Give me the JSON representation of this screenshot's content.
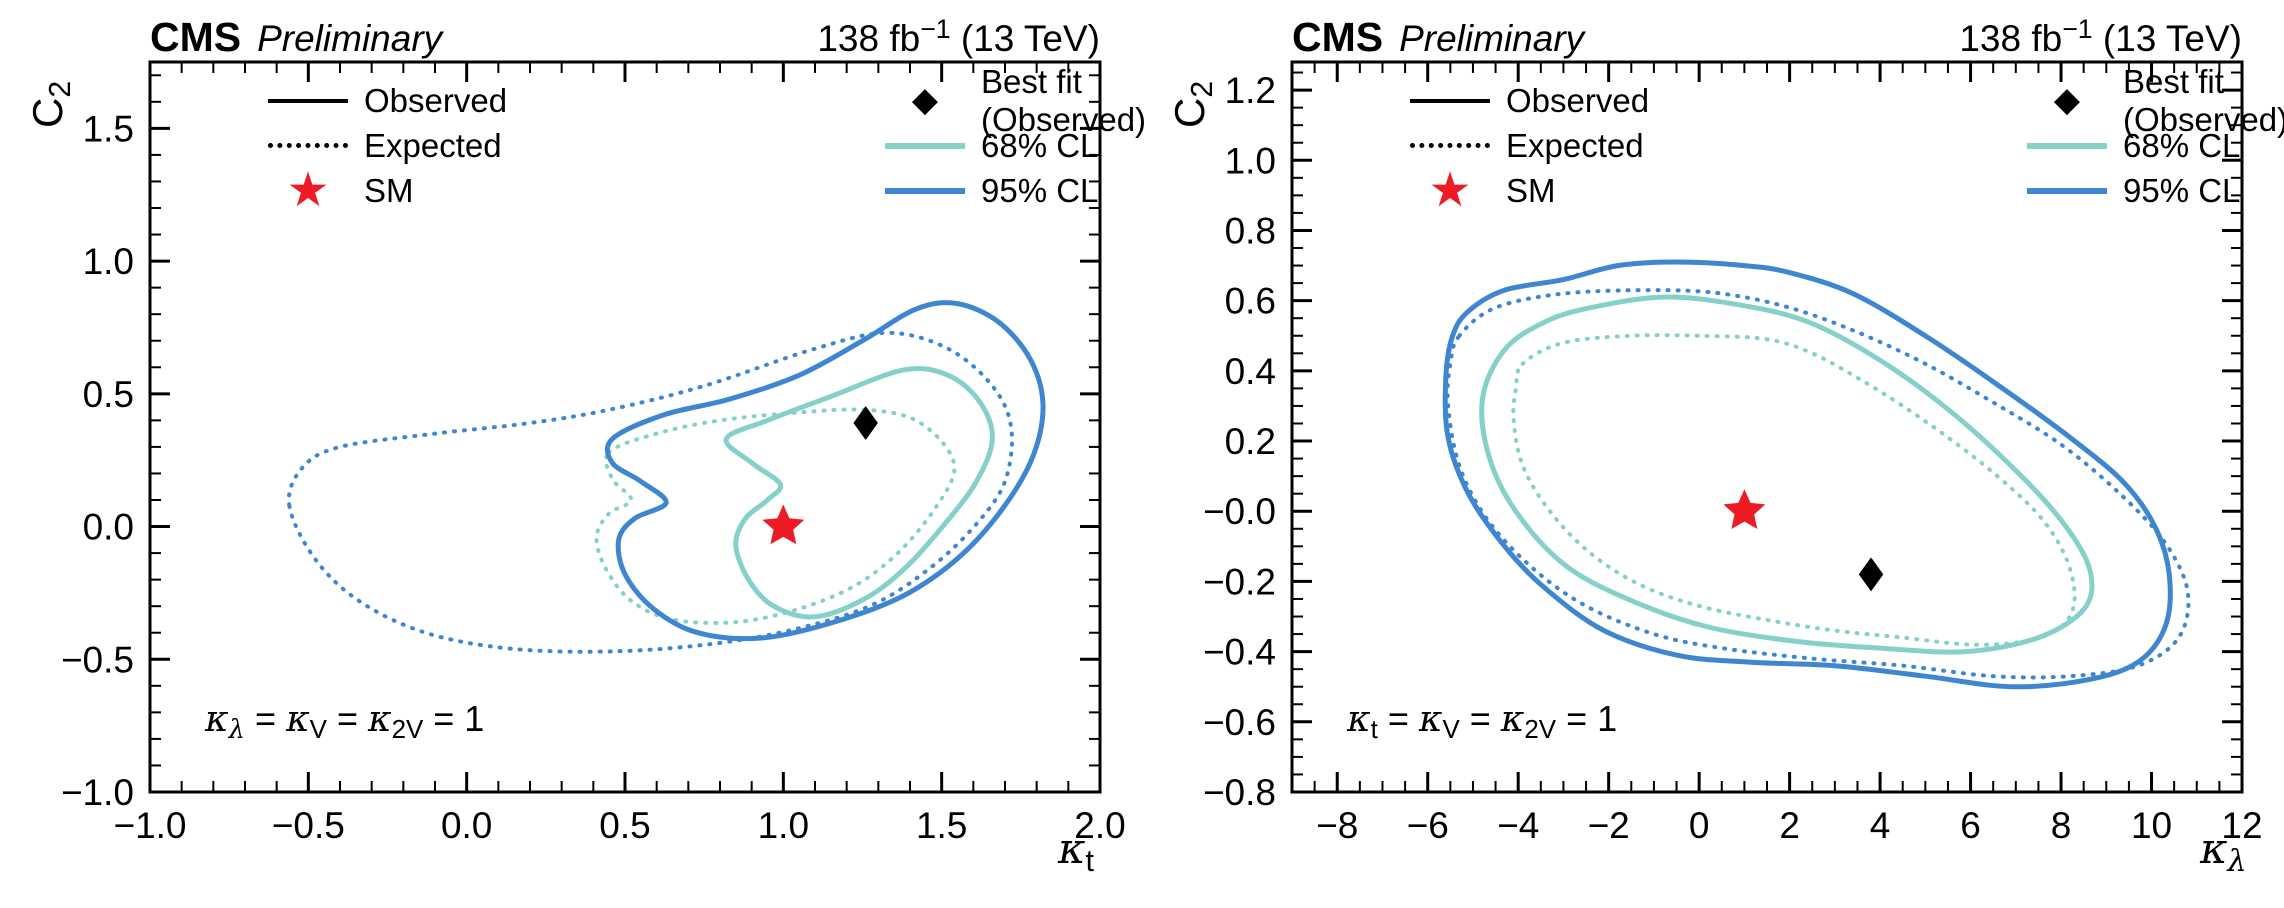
{
  "colors": {
    "blue_95": "#3e86cf",
    "teal_68": "#85d1ca",
    "red_sm": "#ed1c24",
    "black": "#000000"
  },
  "header": {
    "cms": "CMS",
    "preliminary": "Preliminary",
    "lumi": [
      {
        "t": "138 fb"
      },
      {
        "t": "−1",
        "sup": true
      },
      {
        "t": " (13 TeV)"
      }
    ]
  },
  "legend": {
    "items": [
      {
        "label": "Observed",
        "swatch": "solid-black-line"
      },
      {
        "label": "Expected",
        "swatch": "dotted-black-line"
      },
      {
        "label": "SM",
        "swatch": "red-star"
      },
      {
        "label": "Best fit (Observed)",
        "swatch": "black-diamond"
      },
      {
        "label": "68% CL",
        "swatch": "teal-line"
      },
      {
        "label": "95% CL",
        "swatch": "blue-line"
      }
    ]
  },
  "chart_data": [
    {
      "type": "contour",
      "panel": "left",
      "xlabel": "κ_t",
      "ylabel": "C_2",
      "xlabel_rich": [
        {
          "t": "κ",
          "f": "math"
        },
        {
          "t": "t",
          "sub": true
        }
      ],
      "ylabel_rich": [
        {
          "t": "C"
        },
        {
          "t": "2",
          "sub": true
        }
      ],
      "annotation_rich": [
        {
          "t": "κ",
          "f": "math"
        },
        {
          "t": "λ",
          "sub": true,
          "f": "math"
        },
        {
          "t": " = "
        },
        {
          "t": "κ",
          "f": "math"
        },
        {
          "t": "V",
          "sub": true
        },
        {
          "t": " = "
        },
        {
          "t": "κ",
          "f": "math"
        },
        {
          "t": "2V",
          "sub": true
        },
        {
          "t": " = 1"
        }
      ],
      "xlim": [
        -1.0,
        2.0
      ],
      "ylim": [
        -1.0,
        1.75
      ],
      "xticks": [
        -1.0,
        -0.5,
        0.0,
        0.5,
        1.0,
        1.5,
        2.0
      ],
      "xtick_labels": [
        "−1.0",
        "−0.5",
        "0.0",
        "0.5",
        "1.0",
        "1.5",
        "2.0"
      ],
      "yticks": [
        -1.0,
        -0.5,
        0.0,
        0.5,
        1.0,
        1.5
      ],
      "ytick_labels": [
        "−1.0",
        "−0.5",
        "0.0",
        "0.5",
        "1.0",
        "1.5"
      ],
      "xminor": 0.1,
      "yminor": 0.1,
      "series": [
        {
          "id": "95-expected",
          "name": "95% CL Expected",
          "style": "dotted",
          "color": "#3e86cf",
          "width": 4,
          "points": [
            [
              -0.56,
              0.08
            ],
            [
              -0.52,
              0.22
            ],
            [
              -0.4,
              0.3
            ],
            [
              -0.1,
              0.35
            ],
            [
              0.2,
              0.39
            ],
            [
              0.45,
              0.44
            ],
            [
              0.75,
              0.53
            ],
            [
              1.1,
              0.67
            ],
            [
              1.33,
              0.73
            ],
            [
              1.52,
              0.67
            ],
            [
              1.66,
              0.53
            ],
            [
              1.72,
              0.37
            ],
            [
              1.7,
              0.17
            ],
            [
              1.61,
              0.01
            ],
            [
              1.47,
              -0.15
            ],
            [
              1.29,
              -0.29
            ],
            [
              1.06,
              -0.38
            ],
            [
              0.79,
              -0.44
            ],
            [
              0.47,
              -0.47
            ],
            [
              0.14,
              -0.46
            ],
            [
              -0.13,
              -0.4
            ],
            [
              -0.34,
              -0.28
            ],
            [
              -0.48,
              -0.12
            ]
          ]
        },
        {
          "id": "68-expected",
          "name": "68% CL Expected",
          "style": "dotted",
          "color": "#85d1ca",
          "width": 4,
          "points": [
            [
              0.45,
              0.28
            ],
            [
              0.6,
              0.35
            ],
            [
              0.8,
              0.4
            ],
            [
              1.05,
              0.43
            ],
            [
              1.25,
              0.44
            ],
            [
              1.4,
              0.41
            ],
            [
              1.5,
              0.32
            ],
            [
              1.54,
              0.21
            ],
            [
              1.48,
              0.07
            ],
            [
              1.37,
              -0.09
            ],
            [
              1.23,
              -0.22
            ],
            [
              1.05,
              -0.31
            ],
            [
              0.85,
              -0.36
            ],
            [
              0.65,
              -0.35
            ],
            [
              0.52,
              -0.28
            ],
            [
              0.44,
              -0.16
            ],
            [
              0.41,
              -0.04
            ],
            [
              0.45,
              0.05
            ],
            [
              0.52,
              0.1
            ],
            [
              0.46,
              0.18
            ]
          ]
        },
        {
          "id": "95-observed",
          "name": "95% CL Observed",
          "style": "solid",
          "color": "#3e86cf",
          "width": 5,
          "points": [
            [
              0.46,
              0.33
            ],
            [
              0.62,
              0.42
            ],
            [
              0.83,
              0.48
            ],
            [
              1.05,
              0.57
            ],
            [
              1.25,
              0.7
            ],
            [
              1.42,
              0.82
            ],
            [
              1.55,
              0.84
            ],
            [
              1.68,
              0.77
            ],
            [
              1.78,
              0.63
            ],
            [
              1.82,
              0.46
            ],
            [
              1.79,
              0.27
            ],
            [
              1.7,
              0.08
            ],
            [
              1.56,
              -0.11
            ],
            [
              1.38,
              -0.26
            ],
            [
              1.16,
              -0.36
            ],
            [
              0.93,
              -0.42
            ],
            [
              0.73,
              -0.4
            ],
            [
              0.59,
              -0.31
            ],
            [
              0.5,
              -0.18
            ],
            [
              0.48,
              -0.05
            ],
            [
              0.53,
              0.03
            ],
            [
              0.63,
              0.09
            ],
            [
              0.55,
              0.17
            ],
            [
              0.46,
              0.24
            ]
          ]
        },
        {
          "id": "68-observed",
          "name": "68% CL Observed",
          "style": "solid",
          "color": "#85d1ca",
          "width": 5,
          "points": [
            [
              0.82,
              0.33
            ],
            [
              0.95,
              0.4
            ],
            [
              1.15,
              0.49
            ],
            [
              1.38,
              0.59
            ],
            [
              1.52,
              0.57
            ],
            [
              1.62,
              0.47
            ],
            [
              1.66,
              0.33
            ],
            [
              1.61,
              0.17
            ],
            [
              1.51,
              0.01
            ],
            [
              1.39,
              -0.15
            ],
            [
              1.26,
              -0.27
            ],
            [
              1.1,
              -0.34
            ],
            [
              0.97,
              -0.3
            ],
            [
              0.89,
              -0.2
            ],
            [
              0.85,
              -0.07
            ],
            [
              0.88,
              0.03
            ],
            [
              0.95,
              0.1
            ],
            [
              0.99,
              0.16
            ],
            [
              0.9,
              0.24
            ]
          ]
        }
      ],
      "markers": [
        {
          "id": "sm",
          "name": "SM",
          "shape": "star",
          "color": "#ed1c24",
          "x": 1.0,
          "y": 0.0,
          "size": 22
        },
        {
          "id": "best-fit",
          "name": "Best fit (Observed)",
          "shape": "diamond",
          "color": "#000000",
          "x": 1.26,
          "y": 0.39,
          "size": 17
        }
      ]
    },
    {
      "type": "contour",
      "panel": "right",
      "xlabel": "κ_λ",
      "ylabel": "C_2",
      "xlabel_rich": [
        {
          "t": "κ",
          "f": "math"
        },
        {
          "t": "λ",
          "sub": true,
          "f": "math"
        }
      ],
      "ylabel_rich": [
        {
          "t": "C"
        },
        {
          "t": "2",
          "sub": true
        }
      ],
      "annotation_rich": [
        {
          "t": "κ",
          "f": "math"
        },
        {
          "t": "t",
          "sub": true
        },
        {
          "t": " = "
        },
        {
          "t": "κ",
          "f": "math"
        },
        {
          "t": "V",
          "sub": true
        },
        {
          "t": " = "
        },
        {
          "t": "κ",
          "f": "math"
        },
        {
          "t": "2V",
          "sub": true
        },
        {
          "t": " = 1"
        }
      ],
      "xlim": [
        -9.0,
        12.0
      ],
      "ylim": [
        -0.8,
        1.28
      ],
      "xticks": [
        -8,
        -6,
        -4,
        -2,
        0,
        2,
        4,
        6,
        8,
        10,
        12
      ],
      "xtick_labels": [
        "−8",
        "−6",
        "−4",
        "−2",
        "0",
        "2",
        "4",
        "6",
        "8",
        "10",
        "12"
      ],
      "yticks": [
        -0.8,
        -0.6,
        -0.4,
        -0.2,
        0.0,
        0.2,
        0.4,
        0.6,
        0.8,
        1.0,
        1.2
      ],
      "ytick_labels": [
        "−0.8",
        "−0.6",
        "−0.4",
        "−0.2",
        "−0.0",
        "0.2",
        "0.4",
        "0.6",
        "0.8",
        "1.0",
        "1.2"
      ],
      "xminor": 0.5,
      "yminor": 0.05,
      "series": [
        {
          "id": "95-expected",
          "name": "95% CL Expected",
          "style": "dotted",
          "color": "#3e86cf",
          "width": 4,
          "points": [
            [
              -5.3,
              0.5
            ],
            [
              -4.5,
              0.58
            ],
            [
              -3.0,
              0.62
            ],
            [
              -1.0,
              0.63
            ],
            [
              0.5,
              0.62
            ],
            [
              2.0,
              0.58
            ],
            [
              3.5,
              0.51
            ],
            [
              5.0,
              0.42
            ],
            [
              6.5,
              0.31
            ],
            [
              8.0,
              0.19
            ],
            [
              9.3,
              0.05
            ],
            [
              10.3,
              -0.09
            ],
            [
              10.8,
              -0.23
            ],
            [
              10.6,
              -0.36
            ],
            [
              9.7,
              -0.44
            ],
            [
              8.2,
              -0.47
            ],
            [
              6.5,
              -0.47
            ],
            [
              4.5,
              -0.44
            ],
            [
              2.5,
              -0.42
            ],
            [
              0.5,
              -0.39
            ],
            [
              -1.0,
              -0.35
            ],
            [
              -2.5,
              -0.27
            ],
            [
              -3.7,
              -0.16
            ],
            [
              -4.7,
              -0.02
            ],
            [
              -5.3,
              0.13
            ],
            [
              -5.55,
              0.3
            ],
            [
              -5.5,
              0.42
            ]
          ]
        },
        {
          "id": "68-expected",
          "name": "68% CL Expected",
          "style": "dotted",
          "color": "#85d1ca",
          "width": 4,
          "points": [
            [
              -3.9,
              0.42
            ],
            [
              -3.0,
              0.48
            ],
            [
              -1.5,
              0.5
            ],
            [
              0.0,
              0.5
            ],
            [
              1.5,
              0.49
            ],
            [
              2.5,
              0.45
            ],
            [
              3.5,
              0.38
            ],
            [
              4.5,
              0.3
            ],
            [
              5.5,
              0.21
            ],
            [
              6.5,
              0.11
            ],
            [
              7.5,
              -0.01
            ],
            [
              8.1,
              -0.13
            ],
            [
              8.3,
              -0.25
            ],
            [
              8.0,
              -0.33
            ],
            [
              7.2,
              -0.37
            ],
            [
              6.0,
              -0.38
            ],
            [
              4.5,
              -0.36
            ],
            [
              3.0,
              -0.34
            ],
            [
              1.5,
              -0.31
            ],
            [
              0.0,
              -0.27
            ],
            [
              -1.3,
              -0.21
            ],
            [
              -2.4,
              -0.12
            ],
            [
              -3.3,
              0.0
            ],
            [
              -3.9,
              0.13
            ],
            [
              -4.1,
              0.26
            ],
            [
              -4.05,
              0.35
            ]
          ]
        },
        {
          "id": "95-observed",
          "name": "95% CL Observed",
          "style": "solid",
          "color": "#3e86cf",
          "width": 5,
          "points": [
            [
              -5.1,
              0.57
            ],
            [
              -4.3,
              0.63
            ],
            [
              -3.0,
              0.66
            ],
            [
              -1.8,
              0.7
            ],
            [
              -0.5,
              0.71
            ],
            [
              1.0,
              0.7
            ],
            [
              2.0,
              0.68
            ],
            [
              3.4,
              0.62
            ],
            [
              5.0,
              0.5
            ],
            [
              6.6,
              0.36
            ],
            [
              8.2,
              0.21
            ],
            [
              9.4,
              0.08
            ],
            [
              10.1,
              -0.05
            ],
            [
              10.4,
              -0.19
            ],
            [
              10.3,
              -0.33
            ],
            [
              9.7,
              -0.43
            ],
            [
              8.6,
              -0.48
            ],
            [
              6.9,
              -0.5
            ],
            [
              5.0,
              -0.47
            ],
            [
              3.0,
              -0.44
            ],
            [
              1.1,
              -0.43
            ],
            [
              -0.5,
              -0.41
            ],
            [
              -2.1,
              -0.34
            ],
            [
              -3.4,
              -0.22
            ],
            [
              -4.3,
              -0.1
            ],
            [
              -5.1,
              0.05
            ],
            [
              -5.55,
              0.21
            ],
            [
              -5.6,
              0.38
            ],
            [
              -5.45,
              0.5
            ]
          ]
        },
        {
          "id": "68-observed",
          "name": "68% CL Observed",
          "style": "solid",
          "color": "#85d1ca",
          "width": 5,
          "points": [
            [
              -4.3,
              0.46
            ],
            [
              -3.4,
              0.54
            ],
            [
              -2.4,
              0.58
            ],
            [
              -0.8,
              0.61
            ],
            [
              0.8,
              0.59
            ],
            [
              2.4,
              0.54
            ],
            [
              4.0,
              0.43
            ],
            [
              5.6,
              0.28
            ],
            [
              7.2,
              0.09
            ],
            [
              8.2,
              -0.06
            ],
            [
              8.66,
              -0.18
            ],
            [
              8.5,
              -0.28
            ],
            [
              7.5,
              -0.36
            ],
            [
              5.9,
              -0.4
            ],
            [
              4.0,
              -0.39
            ],
            [
              2.1,
              -0.37
            ],
            [
              0.2,
              -0.33
            ],
            [
              -1.4,
              -0.26
            ],
            [
              -2.9,
              -0.16
            ],
            [
              -4.0,
              -0.01
            ],
            [
              -4.63,
              0.15
            ],
            [
              -4.79,
              0.32
            ]
          ]
        }
      ],
      "markers": [
        {
          "id": "sm",
          "name": "SM",
          "shape": "star",
          "color": "#ed1c24",
          "x": 1.0,
          "y": 0.0,
          "size": 22
        },
        {
          "id": "best-fit",
          "name": "Best fit (Observed)",
          "shape": "diamond",
          "color": "#000000",
          "x": 3.8,
          "y": -0.18,
          "size": 17
        }
      ]
    }
  ]
}
